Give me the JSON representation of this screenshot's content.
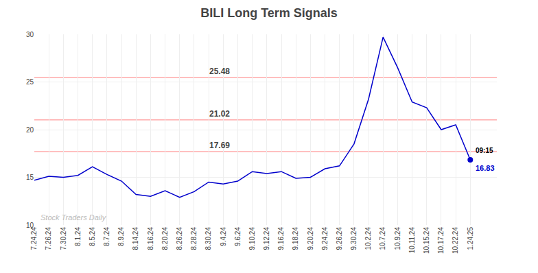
{
  "chart_data": {
    "type": "line",
    "title": "BILI Long Term Signals",
    "categories": [
      "7.24.24",
      "7.26.24",
      "7.30.24",
      "8.1.24",
      "8.5.24",
      "8.7.24",
      "8.9.24",
      "8.14.24",
      "8.16.24",
      "8.20.24",
      "8.26.24",
      "8.28.24",
      "8.30.24",
      "9.4.24",
      "9.6.24",
      "9.10.24",
      "9.12.24",
      "9.16.24",
      "9.18.24",
      "9.20.24",
      "9.24.24",
      "9.26.24",
      "9.30.24",
      "10.2.24",
      "10.7.24",
      "10.9.24",
      "10.11.24",
      "10.15.24",
      "10.17.24",
      "10.22.24",
      "1.24.25"
    ],
    "values": [
      14.7,
      15.1,
      15.0,
      15.2,
      16.1,
      15.3,
      14.6,
      13.2,
      13.0,
      13.6,
      12.9,
      13.5,
      14.5,
      14.3,
      14.6,
      15.6,
      15.4,
      15.6,
      14.9,
      15.0,
      15.9,
      16.2,
      18.5,
      23.2,
      29.7,
      26.5,
      22.9,
      22.3,
      20.0,
      20.5,
      16.83
    ],
    "color": "#0000cc",
    "hlines": [
      {
        "value": 17.69,
        "label": "17.69",
        "color": "#ffaaaa"
      },
      {
        "value": 21.02,
        "label": "21.02",
        "color": "#ffaaaa"
      },
      {
        "value": 25.48,
        "label": "25.48",
        "color": "#ffaaaa"
      }
    ],
    "annotations": [
      "09:15",
      "16.83",
      "Stock Traders Daily"
    ],
    "ylim": [
      10,
      30
    ],
    "yticks": [
      10,
      15,
      20,
      25,
      30
    ],
    "grid": true
  }
}
